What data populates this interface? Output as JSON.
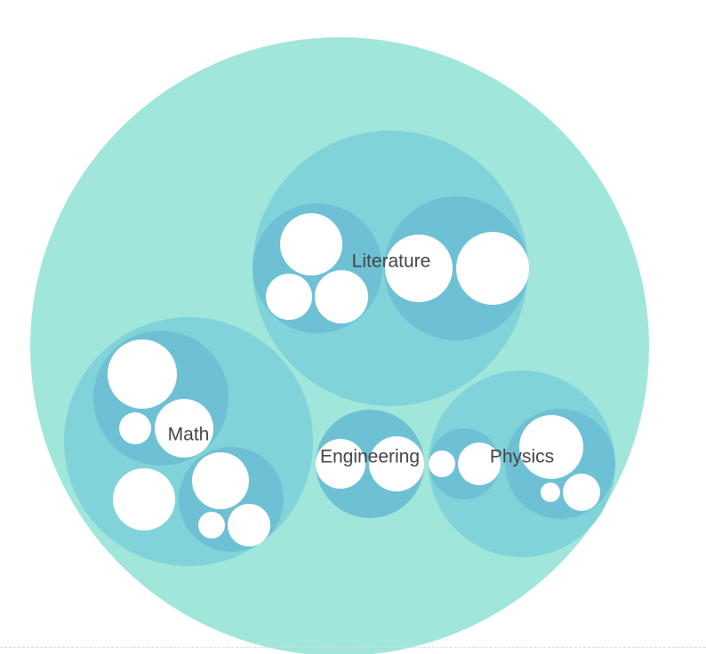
{
  "colors": {
    "root": "#a0e6da",
    "category": "#80d3d9",
    "group": "#6ec0d4",
    "leaf": "#ffffff",
    "label": "#444444"
  },
  "categories": [
    {
      "key": "literature",
      "label": "Literature"
    },
    {
      "key": "math",
      "label": "Math"
    },
    {
      "key": "engineering",
      "label": "Engineering"
    },
    {
      "key": "physics",
      "label": "Physics"
    }
  ]
}
